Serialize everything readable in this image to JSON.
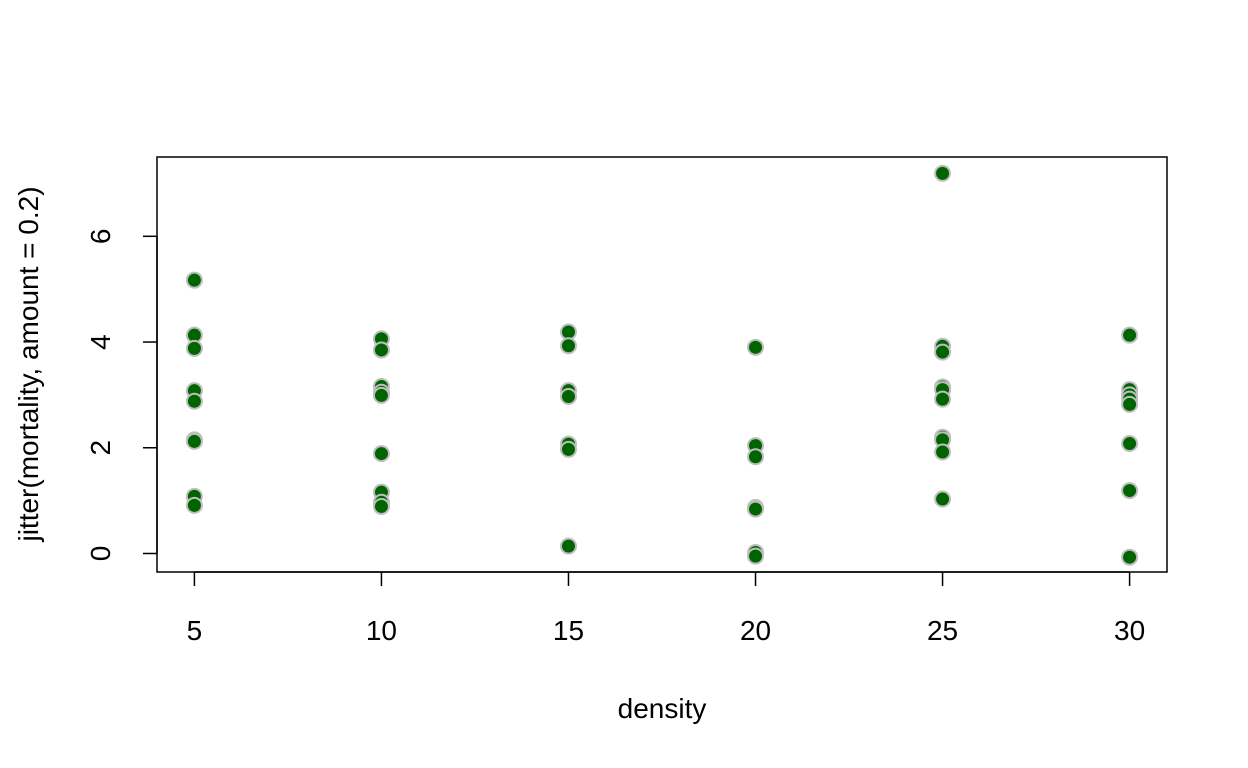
{
  "chart_data": {
    "type": "scatter",
    "title": "",
    "xlabel": "density",
    "ylabel": "jitter(mortality, amount = 0.2)",
    "xlim": [
      4,
      31
    ],
    "ylim": [
      -0.35,
      7.5
    ],
    "x_ticks": [
      5,
      10,
      15,
      20,
      25,
      30
    ],
    "y_ticks": [
      0,
      2,
      4,
      6
    ],
    "point_fill": "#006400",
    "point_border": "#bebebe",
    "grid": false,
    "legend": "none",
    "points": [
      {
        "x": 5,
        "y": 5.17
      },
      {
        "x": 5,
        "y": 4.13
      },
      {
        "x": 5,
        "y": 3.88
      },
      {
        "x": 5,
        "y": 3.08
      },
      {
        "x": 5,
        "y": 2.88
      },
      {
        "x": 5,
        "y": 2.15
      },
      {
        "x": 5,
        "y": 2.12
      },
      {
        "x": 5,
        "y": 1.08
      },
      {
        "x": 5,
        "y": 0.91
      },
      {
        "x": 10,
        "y": 4.06
      },
      {
        "x": 10,
        "y": 3.85
      },
      {
        "x": 10,
        "y": 3.16
      },
      {
        "x": 10,
        "y": 3.05
      },
      {
        "x": 10,
        "y": 2.99
      },
      {
        "x": 10,
        "y": 1.89
      },
      {
        "x": 10,
        "y": 1.16
      },
      {
        "x": 10,
        "y": 0.97
      },
      {
        "x": 10,
        "y": 0.89
      },
      {
        "x": 15,
        "y": 4.19
      },
      {
        "x": 15,
        "y": 3.93
      },
      {
        "x": 15,
        "y": 3.08
      },
      {
        "x": 15,
        "y": 2.97
      },
      {
        "x": 15,
        "y": 2.07
      },
      {
        "x": 15,
        "y": 1.97
      },
      {
        "x": 15,
        "y": 0.14
      },
      {
        "x": 20,
        "y": 3.9
      },
      {
        "x": 20,
        "y": 2.04
      },
      {
        "x": 20,
        "y": 1.83
      },
      {
        "x": 20,
        "y": 0.87
      },
      {
        "x": 20,
        "y": 0.84
      },
      {
        "x": 20,
        "y": 0.02
      },
      {
        "x": 20,
        "y": -0.05
      },
      {
        "x": 25,
        "y": 7.19
      },
      {
        "x": 25,
        "y": 3.92
      },
      {
        "x": 25,
        "y": 3.81
      },
      {
        "x": 25,
        "y": 3.15
      },
      {
        "x": 25,
        "y": 3.1
      },
      {
        "x": 25,
        "y": 2.92
      },
      {
        "x": 25,
        "y": 2.2
      },
      {
        "x": 25,
        "y": 2.15
      },
      {
        "x": 25,
        "y": 1.92
      },
      {
        "x": 25,
        "y": 1.03
      },
      {
        "x": 30,
        "y": 4.13
      },
      {
        "x": 30,
        "y": 3.1
      },
      {
        "x": 30,
        "y": 3.0
      },
      {
        "x": 30,
        "y": 2.92
      },
      {
        "x": 30,
        "y": 2.82
      },
      {
        "x": 30,
        "y": 2.08
      },
      {
        "x": 30,
        "y": 1.19
      },
      {
        "x": 30,
        "y": -0.07
      }
    ]
  }
}
